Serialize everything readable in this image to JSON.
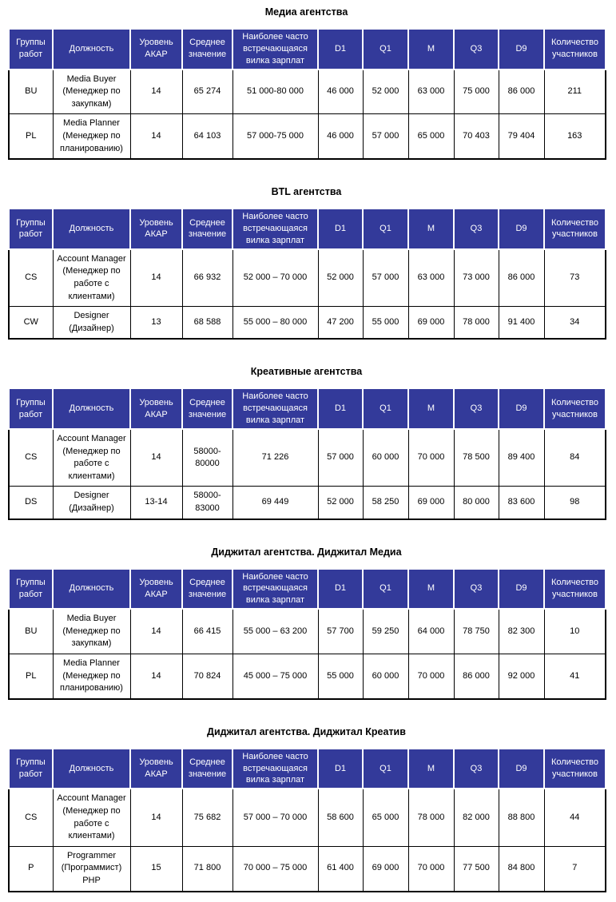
{
  "colors": {
    "header_bg": "#333A9A",
    "header_text": "#ffffff",
    "body_border": "#000000",
    "title_text": "#000000"
  },
  "table_headers": [
    "Группы работ",
    "Должность",
    "Уровень АКАР",
    "Среднее значение",
    "Наиболее часто встречающаяся вилка зарплат",
    "D1",
    "Q1",
    "M",
    "Q3",
    "D9",
    "Количество участников"
  ],
  "tables": [
    {
      "title": "Медиа агентства",
      "rows": [
        [
          "BU",
          "Media Buyer (Менеджер по закупкам)",
          "14",
          "65 274",
          "51 000-80 000",
          "46 000",
          "52 000",
          "63 000",
          "75 000",
          "86 000",
          "211"
        ],
        [
          "PL",
          "Media Planner (Менеджер по планированию)",
          "14",
          "64 103",
          "57 000-75 000",
          "46 000",
          "57 000",
          "65 000",
          "70 403",
          "79 404",
          "163"
        ]
      ]
    },
    {
      "title": "BTL агентства",
      "rows": [
        [
          "CS",
          "Account Manager (Менеджер по работе с клиентами)",
          "14",
          "66 932",
          "52 000 – 70 000",
          "52 000",
          "57 000",
          "63 000",
          "73 000",
          "86 000",
          "73"
        ],
        [
          "CW",
          "Designer (Дизайнер)",
          "13",
          "68 588",
          "55 000 – 80 000",
          "47 200",
          "55 000",
          "69 000",
          "78 000",
          "91 400",
          "34"
        ]
      ]
    },
    {
      "title": "Креативные агентства",
      "rows": [
        [
          "CS",
          "Account Manager (Менеджер по работе с клиентами)",
          "14",
          "58000-80000",
          "71 226",
          "57 000",
          "60 000",
          "70 000",
          "78 500",
          "89 400",
          "84"
        ],
        [
          "DS",
          "Designer (Дизайнер)",
          "13-14",
          "58000-83000",
          "69 449",
          "52 000",
          "58 250",
          "69 000",
          "80 000",
          "83 600",
          "98"
        ]
      ]
    },
    {
      "title": "Диджитал агентства. Диджитал Медиа",
      "rows": [
        [
          "BU",
          "Media Buyer (Менеджер по закупкам)",
          "14",
          "66 415",
          "55 000 – 63 200",
          "57 700",
          "59 250",
          "64 000",
          "78 750",
          "82 300",
          "10"
        ],
        [
          "PL",
          "Media Planner (Менеджер по планированию)",
          "14",
          "70 824",
          "45 000 – 75 000",
          "55 000",
          "60 000",
          "70 000",
          "86 000",
          "92 000",
          "41"
        ]
      ]
    },
    {
      "title": "Диджитал агентства. Диджитал Креатив",
      "rows": [
        [
          "CS",
          "Account Manager (Менеджер по работе с клиентами)",
          "14",
          "75 682",
          "57 000 – 70 000",
          "58 600",
          "65 000",
          "78 000",
          "82 000",
          "88 800",
          "44"
        ],
        [
          "P",
          "Programmer (Программист) PHP",
          "15",
          "71 800",
          "70 000 – 75 000",
          "61 400",
          "69 000",
          "70 000",
          "77 500",
          "84 800",
          "7"
        ]
      ]
    }
  ]
}
